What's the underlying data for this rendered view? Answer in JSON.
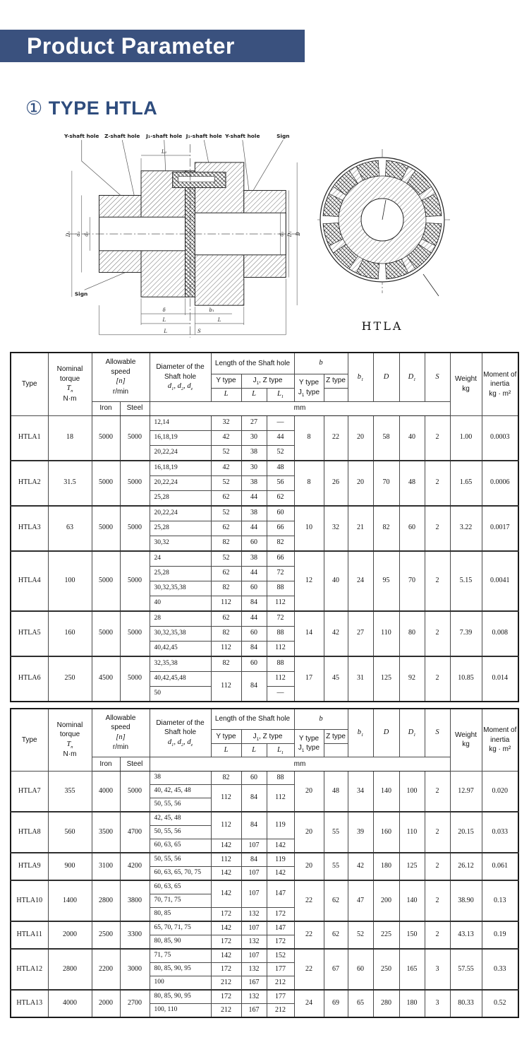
{
  "banner": {
    "title": "Product Parameter",
    "bg": "#3a517e"
  },
  "section": {
    "marker": "①",
    "title": "TYPE HTLA"
  },
  "drawing": {
    "caption": "HTLA",
    "top_labels": [
      "Y-shaft hole",
      "Z-shaft hole",
      "J₁-shaft hole",
      "J₁-shaft hole",
      "Y-shaft hole",
      "Sign"
    ],
    "sign_label": "Sign",
    "dims": {
      "top": "L₁",
      "left": [
        "D₁",
        "d₂",
        "d₁"
      ],
      "right": [
        "D",
        "D₁",
        "d₁"
      ],
      "bottom": [
        "δ",
        "b₁",
        "L",
        "L",
        "L",
        "S"
      ]
    }
  },
  "header": {
    "type": [
      "Type"
    ],
    "torque": [
      "Nominal",
      "torque",
      "T_n",
      "N·m"
    ],
    "speed": [
      "Allowable",
      "speed",
      "[n]",
      "r/min"
    ],
    "diameter": [
      "Diameter of the",
      "Shaft hole",
      "d_1, d_2, d_z"
    ],
    "length": [
      "Length of the Shaft hole"
    ],
    "b": [
      "b"
    ],
    "b1": [
      "b_1"
    ],
    "D": [
      "D"
    ],
    "D1": [
      "D_1"
    ],
    "S": [
      "S"
    ],
    "weight": [
      "Weight",
      "kg"
    ],
    "moment": [
      "Moment of",
      "inertia",
      "kg · m²"
    ],
    "y_type": [
      "Y type"
    ],
    "j1z_type": [
      "J_1, Z type"
    ],
    "b_yj1": [
      "Y type",
      "J_1 type"
    ],
    "z_type": [
      "Z type"
    ],
    "L": [
      "L"
    ],
    "L1": [
      "L_1"
    ],
    "iron": [
      "Iron"
    ],
    "steel": [
      "Steel"
    ],
    "mm": [
      "mm"
    ]
  },
  "tables": [
    {
      "rows": [
        {
          "type": "HTLA1",
          "tq": "18",
          "fe": "5000",
          "st": "5000",
          "sub": [
            {
              "d": "12,14",
              "L": "32",
              "Lj": "27",
              "L1": "—"
            },
            {
              "d": "16,18,19",
              "L": "42",
              "Lj": "30",
              "L1": "44"
            },
            {
              "d": "20,22,24",
              "L": "52",
              "Lj": "38",
              "L1": "52"
            }
          ],
          "bY": "8",
          "bZ": "22",
          "b1": "20",
          "D": "58",
          "D1": "40",
          "S": "2",
          "wt": "1.00",
          "mi": "0.0003"
        },
        {
          "type": "HTLA2",
          "tq": "31.5",
          "fe": "5000",
          "st": "5000",
          "sub": [
            {
              "d": "16,18,19",
              "L": "42",
              "Lj": "30",
              "L1": "48"
            },
            {
              "d": "20,22,24",
              "L": "52",
              "Lj": "38",
              "L1": "56"
            },
            {
              "d": "25,28",
              "L": "62",
              "Lj": "44",
              "L1": "62"
            }
          ],
          "bY": "8",
          "bZ": "26",
          "b1": "20",
          "D": "70",
          "D1": "48",
          "S": "2",
          "wt": "1.65",
          "mi": "0.0006"
        },
        {
          "type": "HTLA3",
          "tq": "63",
          "fe": "5000",
          "st": "5000",
          "sub": [
            {
              "d": "20,22,24",
              "L": "52",
              "Lj": "38",
              "L1": "60"
            },
            {
              "d": "25,28",
              "L": "62",
              "Lj": "44",
              "L1": "66"
            },
            {
              "d": "30,32",
              "L": "82",
              "Lj": "60",
              "L1": "82"
            }
          ],
          "bY": "10",
          "bZ": "32",
          "b1": "21",
          "D": "82",
          "D1": "60",
          "S": "2",
          "wt": "3.22",
          "mi": "0.0017"
        },
        {
          "type": "HTLA4",
          "tq": "100",
          "fe": "5000",
          "st": "5000",
          "sub": [
            {
              "d": "24",
              "L": "52",
              "Lj": "38",
              "L1": "66"
            },
            {
              "d": "25,28",
              "L": "62",
              "Lj": "44",
              "L1": "72"
            },
            {
              "d": "30,32,35,38",
              "L": "82",
              "Lj": "60",
              "L1": "88"
            },
            {
              "d": "40",
              "L": "112",
              "Lj": "84",
              "L1": "112"
            }
          ],
          "bY": "12",
          "bZ": "40",
          "b1": "24",
          "D": "95",
          "D1": "70",
          "S": "2",
          "wt": "5.15",
          "mi": "0.0041"
        },
        {
          "type": "HTLA5",
          "tq": "160",
          "fe": "5000",
          "st": "5000",
          "sub": [
            {
              "d": "28",
              "L": "62",
              "Lj": "44",
              "L1": "72"
            },
            {
              "d": "30,32,35,38",
              "L": "82",
              "Lj": "60",
              "L1": "88"
            },
            {
              "d": "40,42,45",
              "L": "112",
              "Lj": "84",
              "L1": "112"
            }
          ],
          "bY": "14",
          "bZ": "42",
          "b1": "27",
          "D": "110",
          "D1": "80",
          "S": "2",
          "wt": "7.39",
          "mi": "0.008"
        },
        {
          "type": "HTLA6",
          "tq": "250",
          "fe": "4500",
          "st": "5000",
          "sub": [
            {
              "d": "32,35,38",
              "L": "82",
              "Lj": "60",
              "L1": "88"
            },
            {
              "d": "40,42,45,48",
              "L": {
                "v": "112",
                "rs": 2
              },
              "Lj": {
                "v": "84",
                "rs": 2
              },
              "L1": "112"
            },
            {
              "d": "50",
              "L": null,
              "Lj": null,
              "L1": "—"
            }
          ],
          "bY": "17",
          "bZ": "45",
          "b1": "31",
          "D": "125",
          "D1": "92",
          "S": "2",
          "wt": "10.85",
          "mi": "0.014"
        }
      ]
    },
    {
      "rows": [
        {
          "type": "HTLA7",
          "tq": "355",
          "fe": "4000",
          "st": "5000",
          "sub": [
            {
              "d": "38",
              "L": "82",
              "Lj": "60",
              "L1": "88"
            },
            {
              "d": "40, 42, 45, 48",
              "L": {
                "v": "112",
                "rs": 2
              },
              "Lj": {
                "v": "84",
                "rs": 2
              },
              "L1": {
                "v": "112",
                "rs": 2
              }
            },
            {
              "d": "50, 55, 56",
              "L": null,
              "Lj": null,
              "L1": null
            }
          ],
          "bY": "20",
          "bZ": "48",
          "b1": "34",
          "D": "140",
          "D1": "100",
          "S": "2",
          "wt": "12.97",
          "mi": "0.020"
        },
        {
          "type": "HTLA8",
          "tq": "560",
          "fe": "3500",
          "st": "4700",
          "sub": [
            {
              "d": "42, 45, 48",
              "L": {
                "v": "112",
                "rs": 2
              },
              "Lj": {
                "v": "84",
                "rs": 2
              },
              "L1": {
                "v": "119",
                "rs": 2
              }
            },
            {
              "d": "50, 55, 56",
              "L": null,
              "Lj": null,
              "L1": null
            },
            {
              "d": "60, 63, 65",
              "L": "142",
              "Lj": "107",
              "L1": "142"
            }
          ],
          "bY": "20",
          "bZ": "55",
          "b1": "39",
          "D": "160",
          "D1": "110",
          "S": "2",
          "wt": "20.15",
          "mi": "0.033"
        },
        {
          "type": "HTLA9",
          "tq": "900",
          "fe": "3100",
          "st": "4200",
          "sub": [
            {
              "d": "50, 55, 56",
              "L": "112",
              "Lj": "84",
              "L1": "119"
            },
            {
              "d": "60, 63, 65, 70, 75",
              "L": "142",
              "Lj": "107",
              "L1": "142"
            }
          ],
          "bY": "20",
          "bZ": "55",
          "b1": "42",
          "D": "180",
          "D1": "125",
          "S": "2",
          "wt": "26.12",
          "mi": "0.061"
        },
        {
          "type": "HTLA10",
          "tq": "1400",
          "fe": "2800",
          "st": "3800",
          "sub": [
            {
              "d": "60, 63, 65",
              "L": {
                "v": "142",
                "rs": 2
              },
              "Lj": {
                "v": "107",
                "rs": 2
              },
              "L1": {
                "v": "147",
                "rs": 2
              }
            },
            {
              "d": "70, 71, 75",
              "L": null,
              "Lj": null,
              "L1": null
            },
            {
              "d": "80, 85",
              "L": "172",
              "Lj": "132",
              "L1": "172"
            }
          ],
          "bY": "22",
          "bZ": "62",
          "b1": "47",
          "D": "200",
          "D1": "140",
          "S": "2",
          "wt": "38.90",
          "mi": "0.13"
        },
        {
          "type": "HTLA11",
          "tq": "2000",
          "fe": "2500",
          "st": "3300",
          "sub": [
            {
              "d": "65, 70, 71, 75",
              "L": "142",
              "Lj": "107",
              "L1": "147"
            },
            {
              "d": "80, 85, 90",
              "L": "172",
              "Lj": "132",
              "L1": "172"
            }
          ],
          "bY": "22",
          "bZ": "62",
          "b1": "52",
          "D": "225",
          "D1": "150",
          "S": "2",
          "wt": "43.13",
          "mi": "0.19"
        },
        {
          "type": "HTLA12",
          "tq": "2800",
          "fe": "2200",
          "st": "3000",
          "sub": [
            {
              "d": "71, 75",
              "L": "142",
              "Lj": "107",
              "L1": "152"
            },
            {
              "d": "80, 85, 90, 95",
              "L": "172",
              "Lj": "132",
              "L1": "177"
            },
            {
              "d": "100",
              "L": "212",
              "Lj": "167",
              "L1": "212"
            }
          ],
          "bY": "22",
          "bZ": "67",
          "b1": "60",
          "D": "250",
          "D1": "165",
          "S": "3",
          "wt": "57.55",
          "mi": "0.33"
        },
        {
          "type": "HTLA13",
          "tq": "4000",
          "fe": "2000",
          "st": "2700",
          "sub": [
            {
              "d": "80, 85, 90, 95",
              "L": "172",
              "Lj": "132",
              "L1": "177"
            },
            {
              "d": "100, 110",
              "L": "212",
              "Lj": "167",
              "L1": "212"
            }
          ],
          "bY": "24",
          "bZ": "69",
          "b1": "65",
          "D": "280",
          "D1": "180",
          "S": "3",
          "wt": "80.33",
          "mi": "0.52"
        }
      ]
    }
  ]
}
